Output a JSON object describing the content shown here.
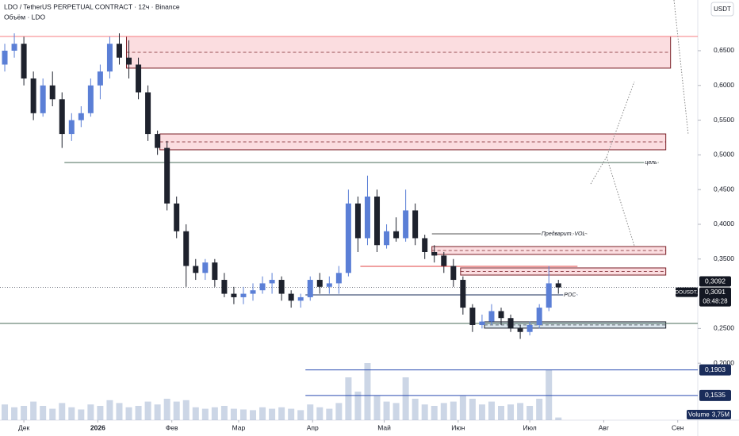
{
  "chart_data": {
    "type": "candlestick",
    "title": "LDO / TetherUS PERPETUAL CONTRACT · 12ч · Binance",
    "subtitle": "Объём · LDO",
    "currency_button": "USDT",
    "up_color": "#5b7fd6",
    "down_color": "#1e222d",
    "xlim": [
      -10,
      282.4
    ],
    "ylim": [
      0.118,
      0.723
    ],
    "xticks": [
      {
        "value": 0,
        "label": "Дек"
      },
      {
        "value": 31,
        "label": "2026"
      },
      {
        "value": 62,
        "label": "Фев"
      },
      {
        "value": 90,
        "label": "Мар"
      },
      {
        "value": 121,
        "label": "Апр"
      },
      {
        "value": 151,
        "label": "Май"
      },
      {
        "value": 182,
        "label": "Июн"
      },
      {
        "value": 212,
        "label": "Июл"
      },
      {
        "value": 243,
        "label": "Авг"
      },
      {
        "value": 274,
        "label": "Сен"
      }
    ],
    "yticks": [
      {
        "value": 0.65,
        "label": "0,6500"
      },
      {
        "value": 0.6,
        "label": "0,6000"
      },
      {
        "value": 0.55,
        "label": "0,5500"
      },
      {
        "value": 0.5,
        "label": "0,5000"
      },
      {
        "value": 0.45,
        "label": "0,4500"
      },
      {
        "value": 0.4,
        "label": "0,4000"
      },
      {
        "value": 0.35,
        "label": "0,3500"
      },
      {
        "value": 0.25,
        "label": "0,2500"
      },
      {
        "value": 0.2,
        "label": "0,2000"
      }
    ],
    "candles": {
      "x": [
        -8,
        -4,
        0,
        4,
        8,
        12,
        16,
        20,
        24,
        28,
        32,
        36,
        40,
        44,
        48,
        52,
        56,
        60,
        64,
        68,
        72,
        76,
        80,
        84,
        88,
        92,
        96,
        100,
        104,
        108,
        112,
        116,
        120,
        124,
        128,
        132,
        136,
        140,
        144,
        148,
        152,
        156,
        160,
        164,
        168,
        172,
        176,
        180,
        184,
        188,
        192,
        196,
        200,
        204,
        208,
        212,
        216,
        220,
        224
      ],
      "open": [
        0.63,
        0.65,
        0.66,
        0.61,
        0.56,
        0.6,
        0.58,
        0.53,
        0.55,
        0.56,
        0.6,
        0.62,
        0.66,
        0.64,
        0.63,
        0.59,
        0.53,
        0.51,
        0.43,
        0.39,
        0.34,
        0.33,
        0.345,
        0.32,
        0.3,
        0.295,
        0.3,
        0.305,
        0.315,
        0.32,
        0.3,
        0.29,
        0.295,
        0.32,
        0.31,
        0.315,
        0.33,
        0.43,
        0.38,
        0.44,
        0.37,
        0.39,
        0.38,
        0.42,
        0.38,
        0.36,
        0.355,
        0.34,
        0.32,
        0.28,
        0.255,
        0.26,
        0.275,
        0.265,
        0.25,
        0.245,
        0.255,
        0.28,
        0.315
      ],
      "high": [
        0.66,
        0.675,
        0.67,
        0.62,
        0.61,
        0.62,
        0.59,
        0.56,
        0.57,
        0.61,
        0.63,
        0.67,
        0.675,
        0.665,
        0.64,
        0.6,
        0.535,
        0.52,
        0.44,
        0.4,
        0.35,
        0.35,
        0.35,
        0.33,
        0.31,
        0.31,
        0.315,
        0.325,
        0.33,
        0.325,
        0.305,
        0.3,
        0.325,
        0.33,
        0.325,
        0.34,
        0.45,
        0.44,
        0.47,
        0.45,
        0.4,
        0.41,
        0.45,
        0.43,
        0.385,
        0.37,
        0.36,
        0.35,
        0.325,
        0.285,
        0.27,
        0.285,
        0.28,
        0.27,
        0.255,
        0.26,
        0.285,
        0.34,
        0.32
      ],
      "low": [
        0.62,
        0.64,
        0.6,
        0.55,
        0.555,
        0.57,
        0.51,
        0.52,
        0.54,
        0.555,
        0.58,
        0.61,
        0.63,
        0.61,
        0.58,
        0.52,
        0.5,
        0.42,
        0.38,
        0.31,
        0.32,
        0.32,
        0.31,
        0.295,
        0.285,
        0.285,
        0.29,
        0.3,
        0.3,
        0.29,
        0.28,
        0.28,
        0.29,
        0.3,
        0.3,
        0.3,
        0.325,
        0.36,
        0.37,
        0.36,
        0.365,
        0.375,
        0.375,
        0.37,
        0.35,
        0.345,
        0.33,
        0.31,
        0.27,
        0.245,
        0.25,
        0.255,
        0.255,
        0.245,
        0.235,
        0.24,
        0.25,
        0.275,
        0.3
      ],
      "close": [
        0.65,
        0.66,
        0.61,
        0.56,
        0.6,
        0.58,
        0.53,
        0.55,
        0.56,
        0.6,
        0.62,
        0.66,
        0.64,
        0.63,
        0.59,
        0.53,
        0.51,
        0.43,
        0.39,
        0.34,
        0.33,
        0.345,
        0.32,
        0.3,
        0.295,
        0.3,
        0.305,
        0.315,
        0.32,
        0.3,
        0.29,
        0.295,
        0.32,
        0.31,
        0.315,
        0.33,
        0.43,
        0.38,
        0.44,
        0.37,
        0.39,
        0.38,
        0.42,
        0.38,
        0.36,
        0.355,
        0.34,
        0.32,
        0.28,
        0.255,
        0.26,
        0.275,
        0.265,
        0.25,
        0.245,
        0.255,
        0.28,
        0.315,
        0.3092
      ]
    },
    "volume": {
      "color": "#8fa3c8",
      "ylim": [
        0,
        100
      ],
      "values": [
        22,
        18,
        20,
        26,
        20,
        16,
        24,
        18,
        15,
        22,
        20,
        28,
        24,
        18,
        20,
        26,
        22,
        30,
        26,
        28,
        18,
        16,
        18,
        20,
        16,
        15,
        14,
        18,
        16,
        18,
        16,
        14,
        22,
        18,
        16,
        24,
        60,
        40,
        80,
        34,
        26,
        24,
        60,
        30,
        22,
        20,
        24,
        26,
        34,
        30,
        22,
        26,
        20,
        22,
        24,
        20,
        30,
        70,
        3.75
      ]
    },
    "zones": [
      {
        "y": [
          0.6249,
          0.6705
        ],
        "x": [
          43,
          271
        ],
        "fill": "#fbdde0",
        "stroke": "#7a1f27"
      },
      {
        "y": [
          0.5073,
          0.5301
        ],
        "x": [
          57,
          269
        ],
        "fill": "#fbdde0",
        "stroke": "#7a1f27"
      },
      {
        "y": [
          0.3566,
          0.368
        ],
        "x": [
          171,
          269
        ],
        "fill": "#fbdde0",
        "stroke": "#7a1f27"
      },
      {
        "y": [
          0.3269,
          0.3372
        ],
        "x": [
          183,
          269
        ],
        "fill": "#fbdde0",
        "stroke": "#7a1f27"
      },
      {
        "y": [
          0.2505,
          0.2596
        ],
        "x": [
          193,
          269
        ],
        "fill": "#dbe6ee",
        "stroke": "#1e222d"
      }
    ],
    "levels": [
      {
        "value": 0.6705,
        "x": [
          -10,
          282.4
        ],
        "color": "#f77c80"
      },
      {
        "value": 0.489,
        "x": [
          17,
          266
        ],
        "color": "#4a6b5a",
        "label": "цель"
      },
      {
        "value": 0.3863,
        "x": [
          171,
          236
        ],
        "color": "#555555",
        "label": "Предварит. VOL"
      },
      {
        "value": 0.3395,
        "x": [
          141,
          232
        ],
        "color": "#e04040"
      },
      {
        "value": 0.2984,
        "x": [
          118,
          232
        ],
        "color": "#1a2c5a",
        "label": "POC"
      },
      {
        "value": 0.2573,
        "x": [
          -10,
          282.4
        ],
        "color": "#4a6b5a"
      },
      {
        "value": 0.1903,
        "x": [
          118,
          282.4
        ],
        "color": "#2a4bb0",
        "value_label": "0,1903"
      },
      {
        "value": 0.1535,
        "x": [
          118,
          282.4
        ],
        "color": "#2a4bb0",
        "value_label": "0,1535"
      }
    ],
    "last_price": {
      "value": 0.3092,
      "value_label": "0,3092"
    },
    "symbol_badge": {
      "symbol": "LDOUSDT.P",
      "value": 0.3091,
      "value_label": "0,3091",
      "countdown": "08:48:28"
    },
    "volume_badge": {
      "label": "Volume",
      "value": 3.75,
      "value_label": "3,75M"
    }
  }
}
